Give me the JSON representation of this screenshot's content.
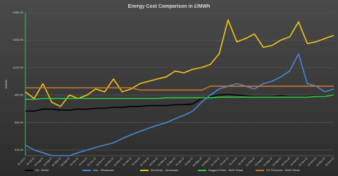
{
  "chart_data": {
    "type": "line",
    "title": "Energy Cost Comparison  in £/MWh",
    "y_label": "£/MWh",
    "log_scale": true,
    "grid": true,
    "categories": [
      "01-Jul-21",
      "15-Jul-21",
      "01-Aug-21",
      "15-Aug-21",
      "01-Sep-21",
      "15-Sep-21",
      "01-Oct-21",
      "15-Oct-21",
      "01-Nov-21",
      "15-Nov-21",
      "01-Dec-21",
      "15-Dec-21",
      "01-Jan-22",
      "15-Jan-22",
      "01-Feb-22",
      "15-Feb-22",
      "01-Mar-22",
      "15-Mar-22",
      "01-Apr-22",
      "15-Apr-22",
      "01-May-22",
      "15-May-22",
      "01-Jun-22",
      "15-Jun-22",
      "01-Jul-22",
      "15-Jul-22",
      "01-Aug-22",
      "15-Aug-22",
      "01-Sep-22",
      "15-Sep-22",
      "01-Oct-22",
      "15-Oct-22",
      "01-Nov-22",
      "15-Nov-22",
      "01-Dec-22",
      "15-Dec-22"
    ],
    "ylim": [
      13,
      480
    ],
    "yticks": [
      {
        "value": 15,
        "label": "£15.00"
      },
      {
        "value": 30,
        "label": "£30.00"
      },
      {
        "value": 60,
        "label": "£60.00"
      },
      {
        "value": 120,
        "label": "£120.00"
      },
      {
        "value": 240,
        "label": "£240.00"
      },
      {
        "value": 480,
        "label": "£480.00"
      }
    ],
    "series": [
      {
        "name": "Oil - Retail",
        "color": "#000000",
        "values": [
          40,
          40,
          42,
          42,
          41,
          41,
          42,
          42,
          43,
          43,
          44,
          44,
          45,
          45,
          46,
          46,
          46,
          47,
          47,
          48,
          55,
          58,
          60,
          61,
          60,
          59,
          58,
          58,
          58,
          59,
          58,
          58,
          58,
          59,
          59,
          59
        ]
      },
      {
        "name": "Gas - Wholesale",
        "color": "#4a86d8",
        "values": [
          17,
          15,
          14,
          13,
          13,
          13,
          14,
          15,
          16,
          17,
          18,
          20,
          22,
          24,
          26,
          28,
          30,
          33,
          36,
          40,
          50,
          60,
          70,
          75,
          80,
          75,
          70,
          80,
          85,
          95,
          110,
          170,
          80,
          75,
          65,
          70
        ]
      },
      {
        "name": "Electricity - Wholesale",
        "color": "#f5c518",
        "values": [
          65,
          55,
          80,
          50,
          45,
          60,
          55,
          60,
          70,
          65,
          90,
          65,
          70,
          80,
          85,
          90,
          95,
          110,
          105,
          115,
          120,
          130,
          170,
          400,
          230,
          250,
          280,
          200,
          210,
          240,
          260,
          380,
          220,
          230,
          250,
          270
        ]
      },
      {
        "name": "Bagged Pellet - WHE Retail",
        "color": "#2ecc40",
        "values": [
          54,
          54,
          55,
          55,
          55,
          55,
          55,
          55,
          55,
          55,
          55,
          55,
          55,
          55,
          55,
          55,
          56,
          56,
          56,
          56,
          56,
          56,
          57,
          57,
          57,
          57,
          57,
          57,
          57,
          57,
          57,
          57,
          57,
          58,
          58,
          60
        ]
      },
      {
        "name": "KD Firewood - WHE Retail",
        "color": "#c8772a",
        "values": [
          72,
          72,
          72,
          72,
          72,
          72,
          72,
          72,
          72,
          72,
          72,
          72,
          72,
          68,
          68,
          68,
          68,
          68,
          68,
          68,
          68,
          75,
          75,
          75,
          75,
          75,
          75,
          75,
          75,
          75,
          75,
          75,
          75,
          75,
          75,
          75
        ]
      }
    ]
  }
}
